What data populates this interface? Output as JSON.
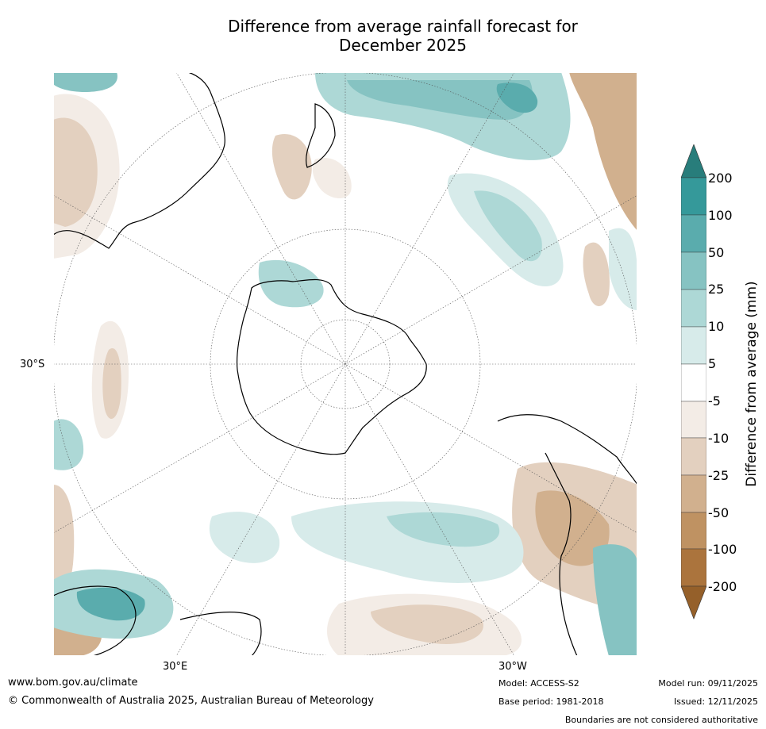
{
  "title": {
    "line1": "Difference from average rainfall forecast for",
    "line2": "December 2025"
  },
  "map": {
    "projection": "south-polar stereographic",
    "lat_label": "30°S",
    "lon_labels": [
      "30°E",
      "30°W"
    ]
  },
  "legend": {
    "title": "Difference from average (mm)",
    "ticks": [
      "200",
      "100",
      "50",
      "25",
      "10",
      "5",
      "-5",
      "-10",
      "-25",
      "-50",
      "-100",
      "-200"
    ],
    "colors": {
      "wet_200_plus": "#287d7b",
      "wet_100_200": "#35999a",
      "wet_50_100": "#5aacad",
      "wet_25_50": "#86c3c2",
      "wet_10_25": "#add8d6",
      "wet_5_10": "#d7ebea",
      "neutral": "#ffffff",
      "dry_5_10": "#f3ece6",
      "dry_10_25": "#e3d0bf",
      "dry_25_50": "#d1b08e",
      "dry_50_100": "#bf9262",
      "dry_100_200": "#ab743d",
      "dry_200_plus": "#95602a"
    }
  },
  "footer": {
    "website": "www.bom.gov.au/climate",
    "copyright": "© Commonwealth of Australia 2025, Australian Bureau of Meteorology",
    "model": "Model: ACCESS-S2",
    "base_period": "Base period: 1981-2018",
    "model_run": "Model run: 09/11/2025",
    "issued": "Issued: 12/11/2025",
    "disclaimer": "Boundaries are not considered authoritative"
  }
}
